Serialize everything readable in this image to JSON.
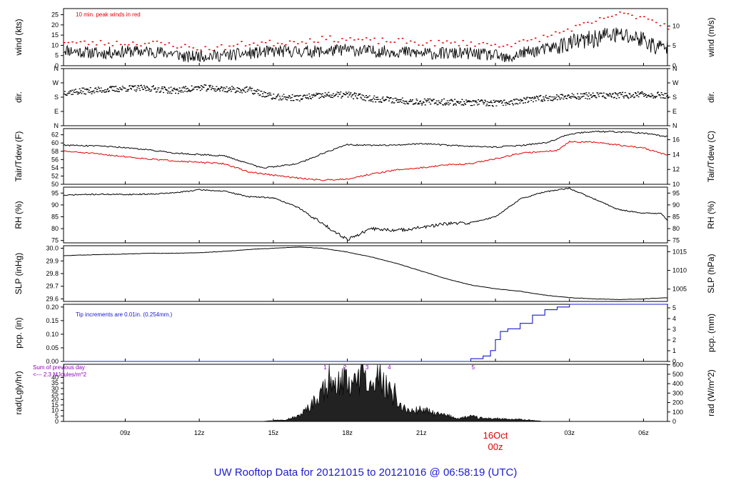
{
  "footer": "UW Rooftop Data for 20121015  to  20121016 @ 06:58:19  (UTC)",
  "colors": {
    "main": "#000000",
    "peak": "#e00000",
    "tdew": "#e00000",
    "pcp": "#1a1ad0",
    "note_purple": "#9000c0",
    "date": "#e00000",
    "footer": "#1a1ad0"
  },
  "time_axis": {
    "range_hours": [
      6.5,
      30.97
    ],
    "ticks": [
      {
        "hour": 9,
        "label": "09z"
      },
      {
        "hour": 12,
        "label": "12z"
      },
      {
        "hour": 15,
        "label": "15z"
      },
      {
        "hour": 18,
        "label": "18z"
      },
      {
        "hour": 21,
        "label": "21z"
      },
      {
        "hour": 27,
        "label": "03z"
      },
      {
        "hour": 30,
        "label": "06z"
      }
    ],
    "date_mark": {
      "hour": 24,
      "line1": "16Oct",
      "line2": "00z"
    }
  },
  "panels": {
    "wind": {
      "ylabel_left": "wind (kts)",
      "ylabel_right": "wind (m/s)",
      "annotation": "10 min. peak winds in red",
      "left_ticks": [
        "0",
        "5",
        "10",
        "15",
        "20",
        "25"
      ],
      "right_ticks": [
        "0",
        "5",
        "10"
      ]
    },
    "dir": {
      "ylabel_left": "dir.",
      "ylabel_right": "dir.",
      "ticks": [
        "N",
        "E",
        "S",
        "W",
        "N"
      ]
    },
    "temp": {
      "ylabel_left": "Tair/Tdew (F)",
      "ylabel_right": "Tair/Tdew (C)",
      "left_ticks": [
        "50",
        "52",
        "54",
        "56",
        "58",
        "60",
        "62"
      ],
      "right_ticks": [
        "10",
        "12",
        "14",
        "16"
      ]
    },
    "rh": {
      "ylabel_left": "RH (%)",
      "ylabel_right": "RH (%)",
      "ticks": [
        "75",
        "80",
        "85",
        "90",
        "95"
      ]
    },
    "slp": {
      "ylabel_left": "SLP (inHg)",
      "ylabel_right": "SLP (hPa)",
      "left_ticks": [
        "29.6",
        "29.7",
        "29.8",
        "29.9",
        "30.0"
      ],
      "right_ticks": [
        "1005",
        "1010",
        "1015"
      ]
    },
    "pcp": {
      "ylabel_left": "pcp. (in)",
      "ylabel_right": "pcp. (mm)",
      "annotation": "Tip increments are 0.01in. (0.254mm.)",
      "left_ticks": [
        "0.00",
        "0.05",
        "0.10",
        "0.15",
        "0.20"
      ],
      "right_ticks": [
        "0",
        "1",
        "2",
        "3",
        "4",
        "5"
      ]
    },
    "rad": {
      "ylabel_left": "rad(Lgly/hr)",
      "ylabel_right": "rad (W/m^2)",
      "note_line1": "Sum of previous day",
      "note_line2": "<--- 2.3 MJoules/m^2",
      "left_ticks": [
        "0",
        "5",
        "10",
        "15",
        "20",
        "25",
        "30",
        "35",
        "40"
      ],
      "right_ticks": [
        "0",
        "100",
        "200",
        "300",
        "400",
        "500",
        "600"
      ],
      "markers": [
        "1",
        "2",
        "3",
        "4",
        "5"
      ]
    }
  },
  "chart_data": [
    {
      "type": "line",
      "panel": "wind",
      "ylabel": "wind (kts)",
      "ylim": [
        0,
        28
      ],
      "series": [
        {
          "name": "wind",
          "x": [
            6.5,
            7,
            8,
            9,
            10,
            11,
            11.5,
            12,
            13,
            14,
            15,
            16,
            17,
            18,
            19,
            20,
            21,
            22,
            23,
            24,
            24.5,
            25,
            26,
            27,
            28,
            28.5,
            29,
            30,
            30.5,
            31
          ],
          "y": [
            8,
            7,
            6,
            7,
            7,
            6,
            4,
            5,
            5,
            6,
            7,
            7,
            7,
            8,
            7,
            7,
            6,
            6,
            6,
            5,
            3,
            6,
            8,
            11,
            13,
            15,
            15,
            13,
            9,
            9
          ]
        },
        {
          "name": "10 min. peak winds",
          "x": [
            6.5,
            7,
            8,
            9,
            10,
            11,
            12,
            13,
            14,
            15,
            16,
            17,
            18,
            19,
            20,
            21,
            22,
            23,
            24,
            25,
            26,
            27,
            28,
            28.5,
            29,
            30,
            31
          ],
          "y": [
            12,
            11,
            11,
            11,
            11,
            10,
            8,
            9,
            11,
            11,
            12,
            13,
            13,
            12,
            12,
            11,
            11,
            11,
            10,
            11,
            14,
            18,
            21,
            24,
            25,
            24,
            19
          ]
        }
      ]
    },
    {
      "type": "scatter",
      "panel": "dir",
      "ylabel": "dir.",
      "ylim": [
        0,
        360
      ],
      "series": [
        {
          "name": "dir",
          "x": [
            6.5,
            7,
            8,
            9,
            10,
            11,
            12,
            13,
            14,
            15,
            16,
            17,
            18,
            19,
            20,
            21,
            22,
            23,
            24,
            25,
            26,
            27,
            28,
            29,
            30,
            31
          ],
          "y": [
            210,
            215,
            225,
            235,
            235,
            220,
            240,
            230,
            225,
            180,
            175,
            190,
            195,
            170,
            160,
            150,
            150,
            145,
            140,
            155,
            175,
            185,
            190,
            190,
            195,
            190
          ]
        }
      ]
    },
    {
      "type": "line",
      "panel": "temp",
      "ylabel": "Tair/Tdew (F)",
      "ylim": [
        50,
        63.5
      ],
      "series": [
        {
          "name": "Tair",
          "x": [
            6.5,
            7,
            8,
            9,
            10,
            11,
            12,
            13,
            14,
            14.5,
            15,
            16,
            17,
            18,
            19,
            20,
            21,
            22,
            23,
            24,
            25,
            26,
            26.5,
            27,
            28,
            29,
            30,
            31
          ],
          "y": [
            59.5,
            59.4,
            59.2,
            58.9,
            58.3,
            57.6,
            57.2,
            56.9,
            55,
            54,
            54.2,
            55,
            57.5,
            59.6,
            59.4,
            59.5,
            59.8,
            59.5,
            59.2,
            59,
            59.4,
            60,
            61,
            62.2,
            62.8,
            62.7,
            62.4,
            61.5
          ]
        },
        {
          "name": "Tdew",
          "x": [
            6.5,
            7,
            8,
            9,
            10,
            11,
            12,
            13,
            14,
            15,
            16,
            17,
            18,
            19,
            20,
            21,
            22,
            23,
            24,
            25,
            26,
            26.5,
            27,
            28,
            29,
            30,
            31
          ],
          "y": [
            58,
            57.8,
            57.3,
            56.7,
            56.1,
            55.7,
            55.3,
            55,
            53,
            52.2,
            51.5,
            51,
            51.3,
            52.5,
            53.5,
            54,
            54.7,
            55,
            56.2,
            57.5,
            58,
            58.2,
            60.3,
            60.2,
            59.5,
            58.8,
            57
          ]
        }
      ]
    },
    {
      "type": "line",
      "panel": "rh",
      "ylabel": "RH (%)",
      "ylim": [
        74,
        97.5
      ],
      "series": [
        {
          "name": "RH",
          "x": [
            6.5,
            7,
            8,
            9,
            10,
            11,
            12,
            13,
            14,
            15,
            16,
            17,
            18,
            19,
            20,
            21,
            22,
            23,
            24,
            25,
            26,
            27,
            28,
            29,
            30,
            30.7,
            31
          ],
          "y": [
            94,
            94.3,
            94.5,
            94.4,
            94.6,
            95.1,
            96.4,
            95.8,
            93.5,
            93,
            89,
            82,
            75.5,
            80,
            79.2,
            80.5,
            82,
            82.5,
            85,
            92.5,
            95.5,
            97,
            92.5,
            88,
            86.5,
            86.5,
            83
          ]
        }
      ]
    },
    {
      "type": "line",
      "panel": "slp",
      "ylabel": "SLP (inHg)",
      "ylim": [
        29.58,
        30.02
      ],
      "series": [
        {
          "name": "SLP",
          "x": [
            6.5,
            7,
            8,
            9,
            10,
            11,
            12,
            13,
            14,
            15,
            16,
            17,
            18,
            19,
            20,
            21,
            22,
            23,
            24,
            25,
            26,
            27,
            28,
            29,
            30,
            31
          ],
          "y": [
            29.94,
            29.945,
            29.95,
            29.955,
            29.96,
            29.96,
            29.965,
            29.975,
            29.99,
            30.0,
            30.01,
            30.0,
            29.97,
            29.93,
            29.88,
            29.82,
            29.76,
            29.71,
            29.68,
            29.66,
            29.63,
            29.61,
            29.6,
            29.595,
            29.6,
            29.61
          ]
        }
      ]
    },
    {
      "type": "line",
      "panel": "pcp",
      "ylabel": "pcp. (in)",
      "ylim": [
        0,
        0.21
      ],
      "series": [
        {
          "name": "pcp",
          "x": [
            6.5,
            22.5,
            23,
            23.5,
            23.8,
            24,
            24.2,
            24.5,
            25,
            25.5,
            26,
            26.5,
            27,
            28,
            31
          ],
          "y": [
            0,
            0,
            0.01,
            0.02,
            0.04,
            0.08,
            0.11,
            0.12,
            0.14,
            0.17,
            0.19,
            0.2,
            0.21,
            0.21,
            0.21
          ]
        }
      ]
    },
    {
      "type": "area",
      "panel": "rad",
      "ylabel": "rad(Lgly/hr)",
      "ylim": [
        0,
        52
      ],
      "series": [
        {
          "name": "rad",
          "x": [
            6.5,
            14.5,
            15,
            15.5,
            16,
            16.5,
            17,
            17.5,
            18,
            18.3,
            18.6,
            19,
            19.3,
            19.6,
            20,
            20.5,
            21,
            21.5,
            22,
            22.5,
            23,
            23.5,
            24,
            24.5,
            25,
            25.5,
            26,
            31
          ],
          "y": [
            0,
            0,
            1,
            2,
            5,
            15,
            30,
            38,
            40,
            35,
            45,
            30,
            48,
            35,
            20,
            10,
            12,
            8,
            6,
            3,
            5,
            3,
            3,
            2,
            2,
            1,
            0,
            0
          ]
        }
      ]
    }
  ]
}
